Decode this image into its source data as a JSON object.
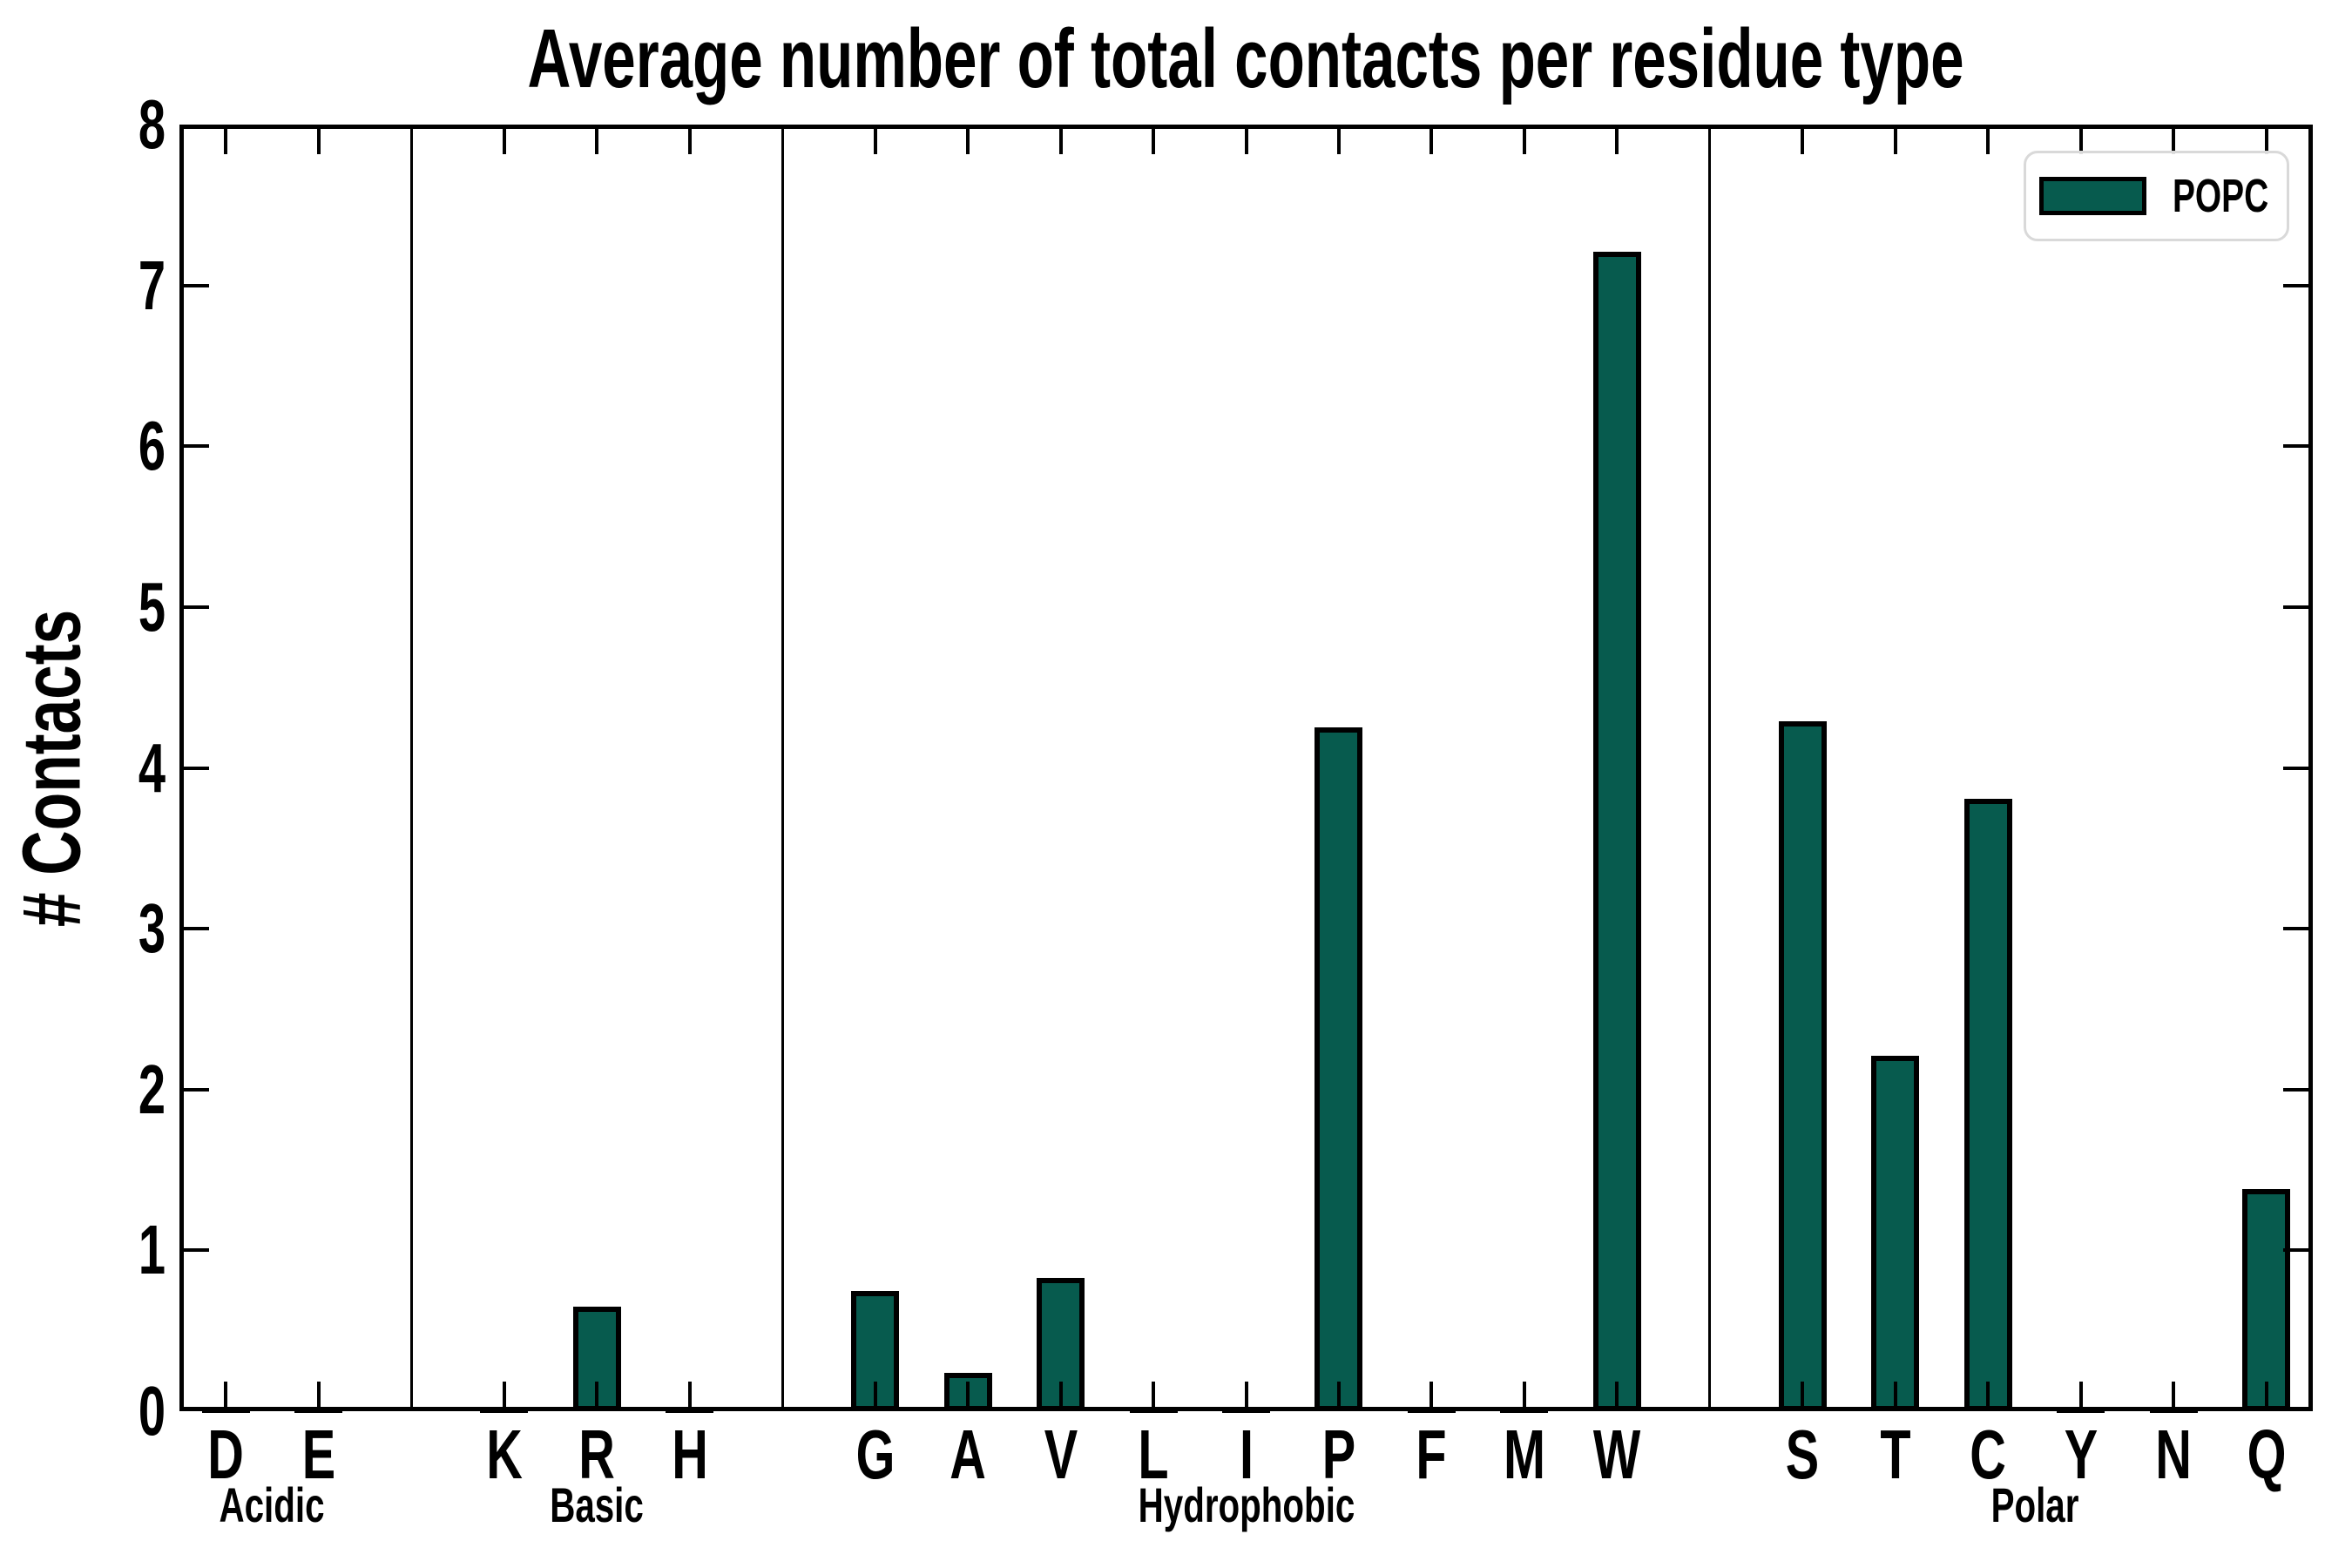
{
  "chart_data": {
    "type": "bar",
    "title": "Average number of total contacts per residue type",
    "ylabel": "# Contacts",
    "xlabel": "",
    "ylim": [
      0,
      8
    ],
    "ytick_labels": [
      "0",
      "1",
      "2",
      "3",
      "4",
      "5",
      "6",
      "7",
      "8"
    ],
    "grid": false,
    "legend_position": "upper right",
    "legend_entries": [
      {
        "label": "POPC",
        "color": "#075B4E"
      }
    ],
    "bar_color": "#075B4E",
    "bar_edge_color": "#000000",
    "groups": [
      {
        "label": "Acidic",
        "categories": [
          "D",
          "E"
        ],
        "values": [
          0,
          0
        ]
      },
      {
        "label": "Basic",
        "categories": [
          "K",
          "R",
          "H"
        ],
        "values": [
          0,
          0.65,
          0
        ]
      },
      {
        "label": "Hydrophobic",
        "categories": [
          "G",
          "A",
          "V",
          "L",
          "I",
          "P",
          "F",
          "M",
          "W"
        ],
        "values": [
          0.75,
          0.24,
          0.83,
          0,
          0,
          4.25,
          0,
          0,
          7.21
        ]
      },
      {
        "label": "Polar",
        "categories": [
          "S",
          "T",
          "C",
          "Y",
          "N",
          "Q"
        ],
        "values": [
          4.29,
          2.21,
          3.81,
          0,
          0,
          1.38
        ]
      }
    ],
    "colors": {
      "axis": "#000000",
      "background": "#ffffff",
      "legend_border": "#d9d9d9"
    }
  }
}
